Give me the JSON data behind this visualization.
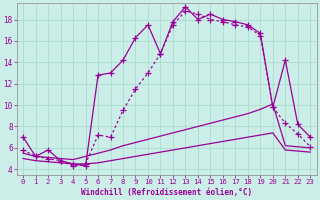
{
  "xlabel": "Windchill (Refroidissement éolien,°C)",
  "bg_color": "#cceee8",
  "grid_color": "#aaddcc",
  "line_color": "#990099",
  "xlim": [
    -0.5,
    23.5
  ],
  "ylim": [
    3.5,
    19.5
  ],
  "xticks": [
    0,
    1,
    2,
    3,
    4,
    5,
    6,
    7,
    8,
    9,
    10,
    11,
    12,
    13,
    14,
    15,
    16,
    17,
    18,
    19,
    20,
    21,
    22,
    23
  ],
  "yticks": [
    4,
    6,
    8,
    10,
    12,
    14,
    16,
    18
  ],
  "line1_x": [
    0,
    1,
    2,
    3,
    4,
    5,
    6,
    7,
    8,
    9,
    10,
    11,
    12,
    13,
    14,
    15,
    16,
    17,
    18,
    19,
    20,
    21,
    22,
    23
  ],
  "line1_y": [
    7.0,
    5.2,
    5.8,
    4.8,
    4.5,
    4.3,
    12.8,
    13.0,
    14.2,
    16.3,
    17.5,
    14.8,
    17.8,
    19.2,
    18.0,
    18.5,
    18.0,
    17.8,
    17.5,
    16.7,
    9.8,
    14.2,
    8.2,
    7.0
  ],
  "line1_markers": true,
  "line2_x": [
    0,
    1,
    2,
    3,
    4,
    5,
    6,
    7,
    8,
    9,
    10,
    11,
    12,
    13,
    14,
    15,
    16,
    17,
    18,
    19,
    20,
    21,
    22,
    23
  ],
  "line2_y": [
    5.8,
    5.2,
    5.0,
    4.8,
    4.3,
    4.5,
    7.2,
    7.0,
    9.5,
    11.5,
    13.0,
    14.8,
    17.5,
    18.8,
    18.5,
    18.0,
    17.8,
    17.5,
    17.3,
    16.5,
    9.8,
    8.3,
    7.3,
    6.1
  ],
  "line2_markers": true,
  "line2_dotted": true,
  "line3_x": [
    0,
    1,
    2,
    3,
    4,
    5,
    6,
    7,
    8,
    9,
    10,
    11,
    12,
    13,
    14,
    15,
    16,
    17,
    18,
    19,
    20,
    21,
    22,
    23
  ],
  "line3_y": [
    5.5,
    5.2,
    5.1,
    5.0,
    4.9,
    5.2,
    5.5,
    5.8,
    6.2,
    6.5,
    6.8,
    7.1,
    7.4,
    7.7,
    8.0,
    8.3,
    8.6,
    8.9,
    9.2,
    9.6,
    10.1,
    6.2,
    6.1,
    6.0
  ],
  "line3_markers": false,
  "line4_x": [
    0,
    1,
    2,
    3,
    4,
    5,
    6,
    7,
    8,
    9,
    10,
    11,
    12,
    13,
    14,
    15,
    16,
    17,
    18,
    19,
    20,
    21,
    22,
    23
  ],
  "line4_y": [
    5.0,
    4.8,
    4.7,
    4.6,
    4.5,
    4.5,
    4.6,
    4.8,
    5.0,
    5.2,
    5.4,
    5.6,
    5.8,
    6.0,
    6.2,
    6.4,
    6.6,
    6.8,
    7.0,
    7.2,
    7.4,
    5.8,
    5.7,
    5.6
  ],
  "line4_markers": false
}
